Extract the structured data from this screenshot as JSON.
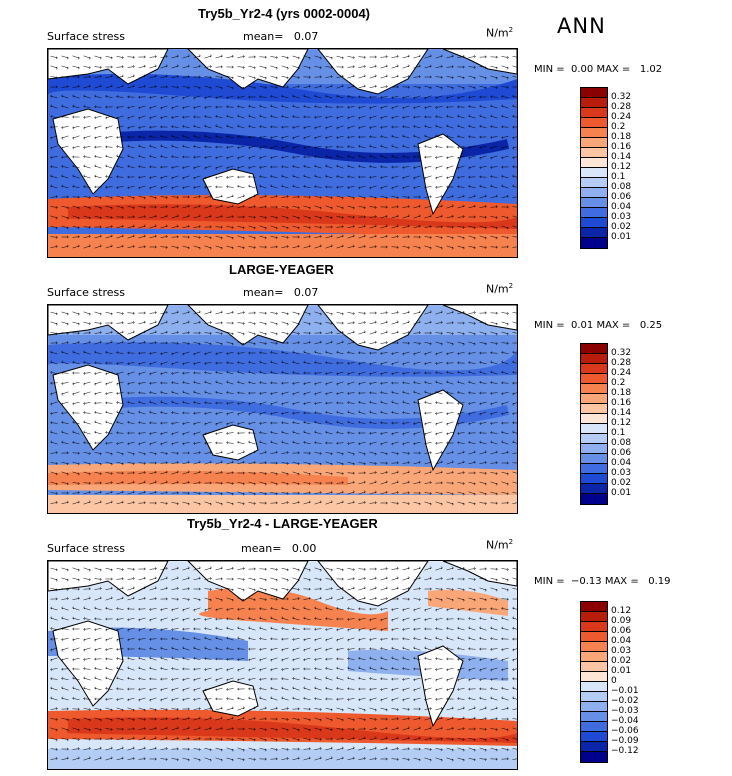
{
  "season": "ANN",
  "panels": [
    {
      "title": "Try5b_Yr2-4 (yrs 0002-0004)",
      "variable": "Surface stress",
      "mean_label": "mean=",
      "mean_value": "0.07",
      "units_base": "N/m",
      "units_exp": "2",
      "min_label": "MIN =",
      "min_value": "0.00",
      "max_label": "MAX =",
      "max_value": "1.02",
      "colorbar": [
        "0.32",
        "0.28",
        "0.24",
        "0.2",
        "0.18",
        "0.16",
        "0.14",
        "0.12",
        "0.1",
        "0.08",
        "0.06",
        "0.04",
        "0.03",
        "0.02",
        "0.01"
      ],
      "colors": [
        "#8b0000",
        "#b81d0c",
        "#d9381a",
        "#ee5a2d",
        "#f5824f",
        "#f9a779",
        "#fcc6a4",
        "#fde6d6",
        "#d8e6f9",
        "#b4cdf5",
        "#8eb0ef",
        "#6590e6",
        "#3f6cde",
        "#1f4ad4",
        "#0a25a8",
        "#00008b"
      ]
    },
    {
      "title": "LARGE-YEAGER",
      "variable": "Surface stress",
      "mean_label": "mean=",
      "mean_value": "0.07",
      "units_base": "N/m",
      "units_exp": "2",
      "min_label": "MIN =",
      "min_value": "0.01",
      "max_label": "MAX =",
      "max_value": "0.25",
      "colorbar": [
        "0.32",
        "0.28",
        "0.24",
        "0.2",
        "0.18",
        "0.16",
        "0.14",
        "0.12",
        "0.1",
        "0.08",
        "0.06",
        "0.04",
        "0.03",
        "0.02",
        "0.01"
      ],
      "colors": [
        "#8b0000",
        "#b81d0c",
        "#d9381a",
        "#ee5a2d",
        "#f5824f",
        "#f9a779",
        "#fcc6a4",
        "#fde6d6",
        "#d8e6f9",
        "#b4cdf5",
        "#8eb0ef",
        "#6590e6",
        "#3f6cde",
        "#1f4ad4",
        "#0a25a8",
        "#00008b"
      ]
    },
    {
      "title": "Try5b_Yr2-4 - LARGE-YEAGER",
      "variable": "Surface stress",
      "mean_label": "mean=",
      "mean_value": "0.00",
      "units_base": "N/m",
      "units_exp": "2",
      "min_label": "MIN =",
      "min_value": "−0.13",
      "max_label": "MAX =",
      "max_value": "0.19",
      "colorbar": [
        "0.12",
        "0.09",
        "0.06",
        "0.04",
        "0.03",
        "0.02",
        "0.01",
        "0",
        "−0.01",
        "−0.02",
        "−0.03",
        "−0.04",
        "−0.06",
        "−0.09",
        "−0.12"
      ],
      "colors": [
        "#8b0000",
        "#b81d0c",
        "#d9381a",
        "#ee5a2d",
        "#f5824f",
        "#f9a779",
        "#fcc6a4",
        "#fde6d6",
        "#d8e6f9",
        "#b4cdf5",
        "#8eb0ef",
        "#6590e6",
        "#3f6cde",
        "#1f4ad4",
        "#0a25a8",
        "#00008b"
      ]
    }
  ]
}
